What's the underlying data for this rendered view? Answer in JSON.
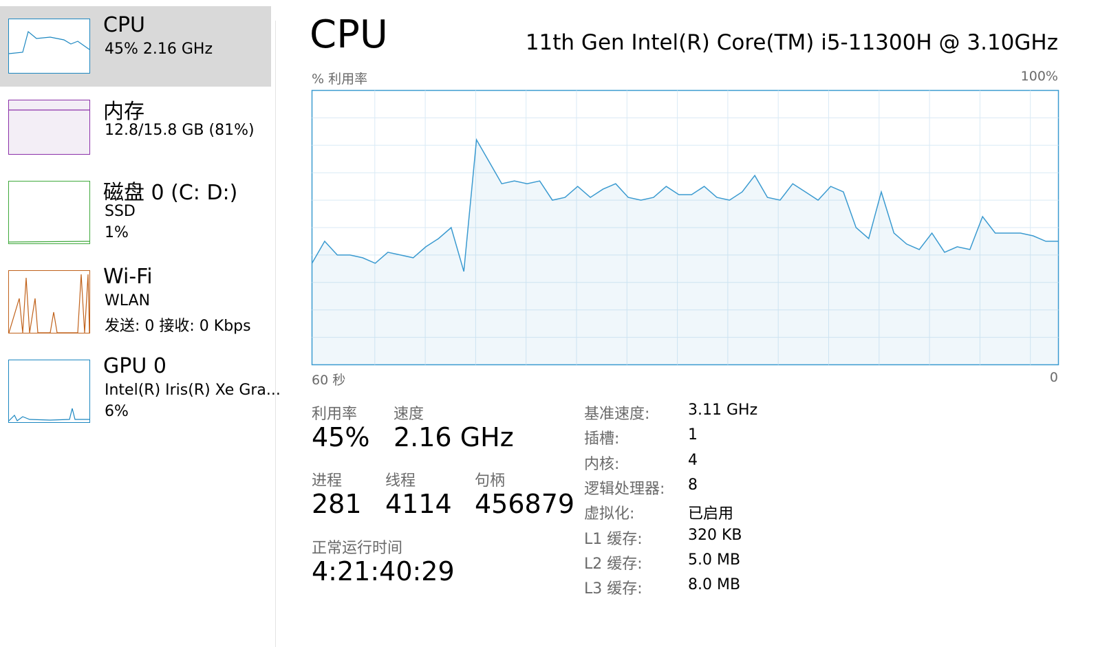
{
  "sidebar": [
    {
      "title": "CPU",
      "lines": [
        "45% 2.16 GHz"
      ]
    },
    {
      "title": "内存",
      "lines": [
        "12.8/15.8 GB (81%)"
      ]
    },
    {
      "title": "磁盘 0 (C: D:)",
      "lines": [
        "SSD",
        "1%"
      ]
    },
    {
      "title": "Wi-Fi",
      "lines": [
        "WLAN",
        "发送: 0 接收: 0 Kbps"
      ]
    },
    {
      "title": "GPU 0",
      "lines": [
        "Intel(R) Iris(R) Xe Gra...",
        "6%"
      ]
    }
  ],
  "header": {
    "title": "CPU",
    "processor": "11th Gen Intel(R) Core(TM) i5-11300H @ 3.10GHz"
  },
  "chart_data": {
    "type": "area",
    "y_label": "% 利用率",
    "y_max_label": "100%",
    "x_start_label": "60 秒",
    "x_end_label": "0",
    "ylim": [
      0,
      100
    ],
    "color": "#3a9ad0",
    "values": [
      37,
      45,
      40,
      40,
      39,
      37,
      41,
      40,
      39,
      43,
      46,
      50,
      34,
      82,
      74,
      66,
      67,
      66,
      67,
      60,
      61,
      65,
      61,
      64,
      66,
      61,
      60,
      61,
      65,
      62,
      62,
      65,
      61,
      60,
      63,
      69,
      61,
      60,
      66,
      63,
      60,
      65,
      63,
      50,
      46,
      63,
      48,
      44,
      42,
      48,
      41,
      43,
      42,
      54,
      48,
      48,
      48,
      47,
      45,
      45
    ]
  },
  "stats": {
    "main": [
      {
        "label": "利用率",
        "value": "45%"
      },
      {
        "label": "速度",
        "value": "2.16 GHz"
      }
    ],
    "counts": [
      {
        "label": "进程",
        "value": "281"
      },
      {
        "label": "线程",
        "value": "4114"
      },
      {
        "label": "句柄",
        "value": "456879"
      }
    ],
    "uptime": {
      "label": "正常运行时间",
      "value": "4:21:40:29"
    },
    "details": [
      [
        "基准速度:",
        "3.11 GHz"
      ],
      [
        "插槽:",
        "1"
      ],
      [
        "内核:",
        "4"
      ],
      [
        "逻辑处理器:",
        "8"
      ],
      [
        "虚拟化:",
        "已启用"
      ],
      [
        "L1 缓存:",
        "320 KB"
      ],
      [
        "L2 缓存:",
        "5.0 MB"
      ],
      [
        "L3 缓存:",
        "8.0 MB"
      ]
    ]
  }
}
